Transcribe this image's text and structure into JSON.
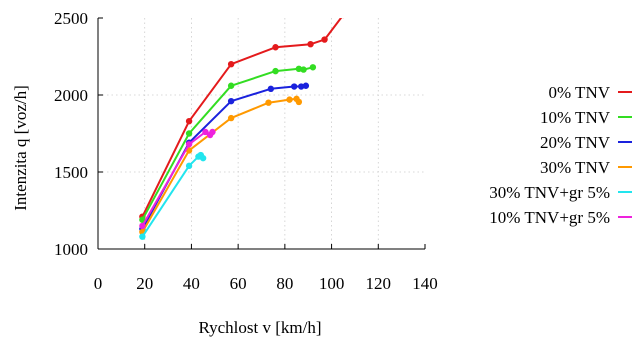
{
  "chart_data": {
    "type": "line",
    "title": "",
    "xlabel": "Rychlost v [km/h]",
    "ylabel": "Intenzita q [voz/h]",
    "xlim": [
      0,
      140
    ],
    "ylim": [
      1000,
      2500
    ],
    "xticks": [
      0,
      20,
      40,
      60,
      80,
      100,
      120,
      140
    ],
    "yticks": [
      1000,
      1500,
      2000,
      2500
    ],
    "grid": true,
    "legend_position": "right",
    "series": [
      {
        "name": "0% TNV",
        "color": "#e41a1c",
        "points": [
          [
            19,
            1210
          ],
          [
            39,
            1830
          ],
          [
            57,
            2200
          ],
          [
            76,
            2310
          ],
          [
            91,
            2330
          ],
          [
            97,
            2360
          ],
          [
            105,
            2520
          ]
        ]
      },
      {
        "name": "10% TNV",
        "color": "#33dd22",
        "points": [
          [
            19,
            1190
          ],
          [
            39,
            1750
          ],
          [
            57,
            2060
          ],
          [
            76,
            2155
          ],
          [
            86,
            2170
          ],
          [
            88,
            2165
          ],
          [
            92,
            2180
          ]
        ]
      },
      {
        "name": "20% TNV",
        "color": "#1a22dd",
        "points": [
          [
            19,
            1130
          ],
          [
            39,
            1690
          ],
          [
            57,
            1960
          ],
          [
            74,
            2040
          ],
          [
            84,
            2055
          ],
          [
            87,
            2055
          ],
          [
            89,
            2060
          ]
        ]
      },
      {
        "name": "30% TNV",
        "color": "#ff9900",
        "points": [
          [
            19,
            1110
          ],
          [
            39,
            1640
          ],
          [
            57,
            1850
          ],
          [
            73,
            1950
          ],
          [
            82,
            1970
          ],
          [
            85,
            1975
          ],
          [
            86,
            1955
          ]
        ]
      },
      {
        "name": "30% TNV+gr 5%",
        "color": "#22e5ee",
        "points": [
          [
            19,
            1080
          ],
          [
            39,
            1540
          ],
          [
            43,
            1600
          ],
          [
            45,
            1590
          ],
          [
            44,
            1610
          ]
        ]
      },
      {
        "name": "10% TNV+gr 5%",
        "color": "#ee22dd",
        "points": [
          [
            19,
            1150
          ],
          [
            39,
            1680
          ],
          [
            46,
            1760
          ],
          [
            48,
            1740
          ],
          [
            49,
            1760
          ]
        ]
      }
    ]
  }
}
